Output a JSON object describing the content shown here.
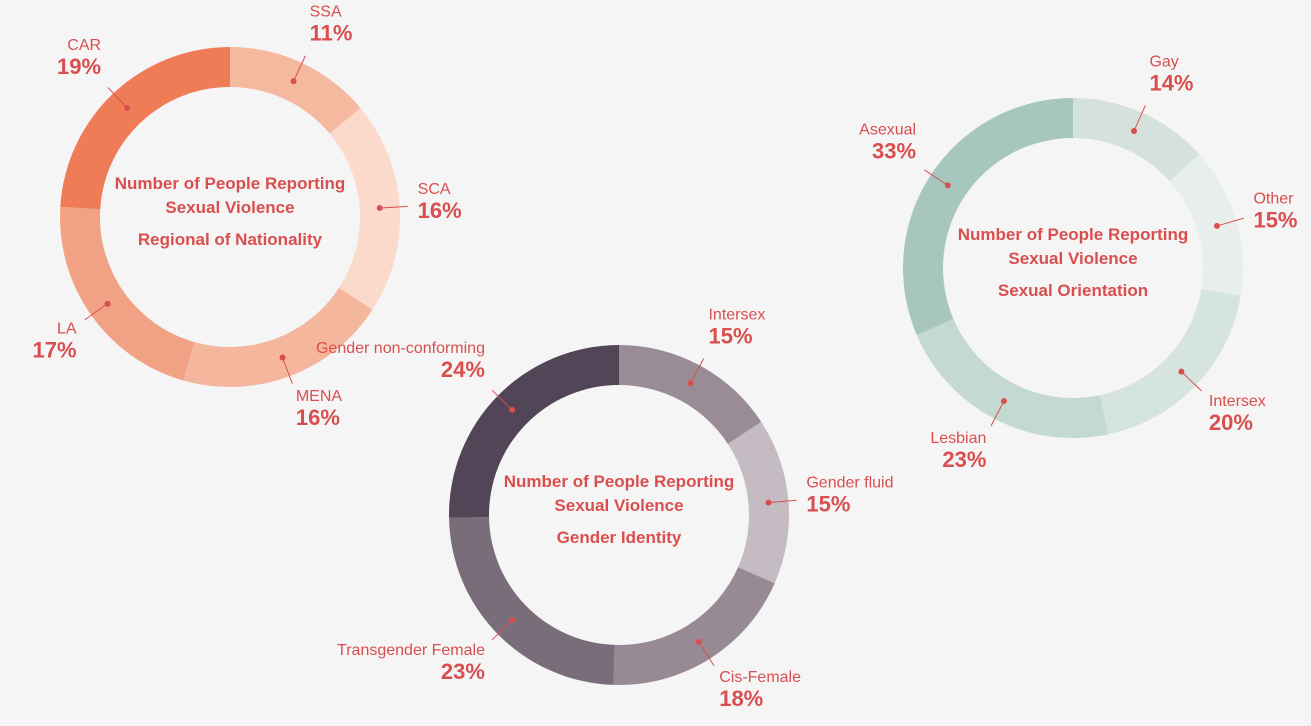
{
  "chart_data": [
    {
      "type": "donut",
      "title": "Number of People Reporting Sexual Violence",
      "subtitle": "Regional of Nationality",
      "categories": [
        "SSA",
        "SCA",
        "MENA",
        "LA",
        "CAR"
      ],
      "values": [
        11,
        16,
        16,
        17,
        19
      ],
      "value_labels": [
        "11%",
        "16%",
        "16%",
        "17%",
        "19%"
      ],
      "colors": [
        "#f5b9a0",
        "#fbd9cb",
        "#f4b69c",
        "#f2a284",
        "#ef7b57"
      ]
    },
    {
      "type": "donut",
      "title": "Number of People Reporting Sexual Violence",
      "subtitle": "Gender Identity",
      "categories": [
        "Intersex",
        "Gender fluid",
        "Cis-Female",
        "Transgender Female",
        "Gender non-conforming"
      ],
      "values": [
        15,
        15,
        18,
        23,
        24
      ],
      "value_labels": [
        "15%",
        "15%",
        "18%",
        "23%",
        "24%"
      ],
      "colors": [
        "#9a8c96",
        "#c4bcc2",
        "#978a94",
        "#7a6d7a",
        "#524557"
      ]
    },
    {
      "type": "donut",
      "title": "Number of People Reporting Sexual Violence",
      "subtitle": "Sexual Orientation",
      "categories": [
        "Gay",
        "Other",
        "Intersex",
        "Lesbian",
        "Asexual"
      ],
      "values": [
        14,
        15,
        20,
        23,
        33
      ],
      "value_labels": [
        "14%",
        "15%",
        "20%",
        "23%",
        "33%"
      ],
      "colors": [
        "#d4e1dd",
        "#e7eeeb",
        "#d6e4df",
        "#c3d9d2",
        "#a7c6be"
      ]
    }
  ]
}
